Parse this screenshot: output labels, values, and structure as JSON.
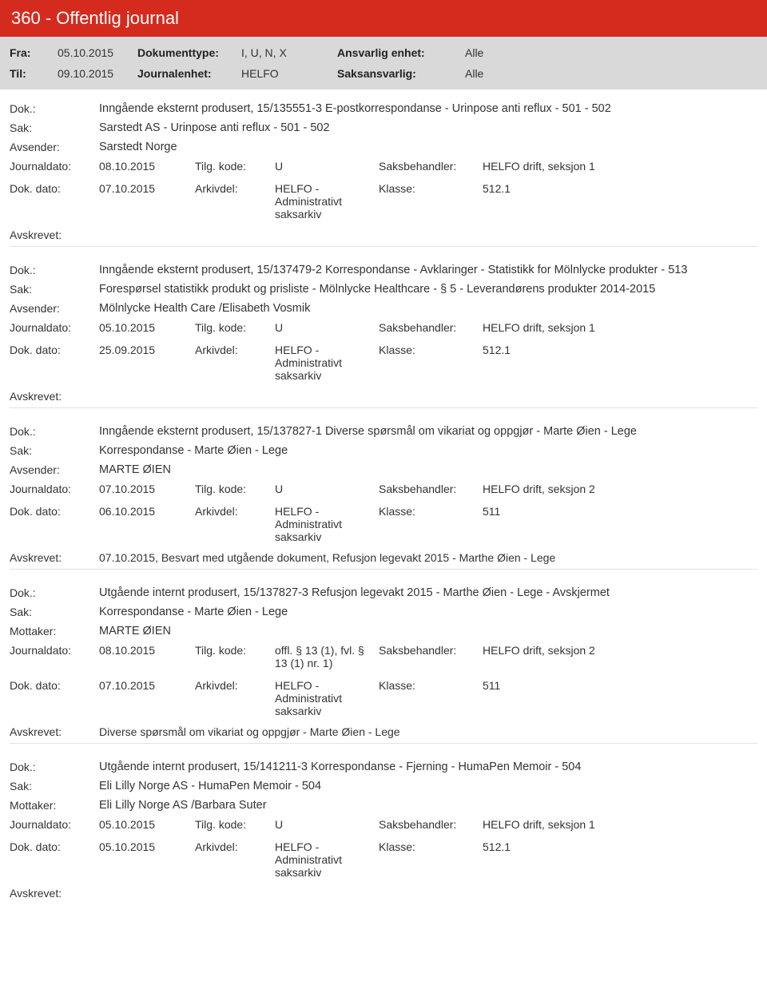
{
  "header": {
    "title": "360 - Offentlig journal",
    "fra_label": "Fra:",
    "fra_value": "05.10.2015",
    "til_label": "Til:",
    "til_value": "09.10.2015",
    "doktype_label": "Dokumenttype:",
    "doktype_value": "I, U, N, X",
    "journalenhet_label": "Journalenhet:",
    "journalenhet_value": "HELFO",
    "ansvarlig_label": "Ansvarlig enhet:",
    "ansvarlig_value": "Alle",
    "saksansvarlig_label": "Saksansvarlig:",
    "saksansvarlig_value": "Alle"
  },
  "labels": {
    "dok": "Dok.:",
    "sak": "Sak:",
    "avsender": "Avsender:",
    "mottaker": "Mottaker:",
    "journaldato": "Journaldato:",
    "dokdato": "Dok. dato:",
    "tilgkode": "Tilg. kode:",
    "arkivdel": "Arkivdel:",
    "saksbehandler": "Saksbehandler:",
    "klasse": "Klasse:",
    "avskrevet": "Avskrevet:"
  },
  "records": [
    {
      "dok": "Inngående eksternt produsert, 15/135551-3 E-postkorrespondanse - Urinpose anti reflux - 501 - 502",
      "sak": "Sarstedt AS - Urinpose anti reflux - 501 - 502",
      "party_label": "avsender",
      "party": "Sarstedt Norge",
      "journaldato": "08.10.2015",
      "tilgkode": "U",
      "saksbehandler": "HELFO drift, seksjon 1",
      "dokdato": "07.10.2015",
      "arkivdel": "HELFO - Administrativt saksarkiv",
      "klasse": "512.1",
      "avskrevet": ""
    },
    {
      "dok": "Inngående eksternt produsert, 15/137479-2 Korrespondanse - Avklaringer - Statistikk for Mölnlycke produkter - 513",
      "sak": "Forespørsel statistikk produkt og prisliste - Mölnlycke Healthcare - § 5 - Leverandørens produkter 2014-2015",
      "party_label": "avsender",
      "party": "Mölnlycke Health Care /Elisabeth Vosmik",
      "journaldato": "05.10.2015",
      "tilgkode": "U",
      "saksbehandler": "HELFO drift, seksjon 1",
      "dokdato": "25.09.2015",
      "arkivdel": "HELFO - Administrativt saksarkiv",
      "klasse": "512.1",
      "avskrevet": ""
    },
    {
      "dok": "Inngående eksternt produsert, 15/137827-1 Diverse spørsmål om vikariat og oppgjør - Marte Øien - Lege",
      "sak": "Korrespondanse - Marte Øien - Lege",
      "party_label": "avsender",
      "party": "MARTE ØIEN",
      "journaldato": "07.10.2015",
      "tilgkode": "U",
      "saksbehandler": "HELFO drift, seksjon 2",
      "dokdato": "06.10.2015",
      "arkivdel": "HELFO - Administrativt saksarkiv",
      "klasse": "511",
      "avskrevet": "07.10.2015, Besvart med utgående dokument, Refusjon legevakt 2015 -  Marthe Øien - Lege"
    },
    {
      "dok": "Utgående internt produsert, 15/137827-3 Refusjon legevakt 2015 -  Marthe Øien - Lege - Avskjermet",
      "sak": "Korrespondanse - Marte Øien - Lege",
      "party_label": "mottaker",
      "party": "MARTE ØIEN",
      "journaldato": "08.10.2015",
      "tilgkode": "offl. § 13 (1), fvl. § 13 (1) nr. 1)",
      "saksbehandler": "HELFO drift, seksjon 2",
      "dokdato": "07.10.2015",
      "arkivdel": "HELFO - Administrativt saksarkiv",
      "klasse": "511",
      "avskrevet": "Diverse spørsmål om vikariat og oppgjør - Marte Øien - Lege"
    },
    {
      "dok": "Utgående internt produsert, 15/141211-3 Korrespondanse - Fjerning - HumaPen Memoir - 504",
      "sak": "Eli Lilly Norge AS - HumaPen Memoir - 504",
      "party_label": "mottaker",
      "party": "Eli Lilly Norge AS /Barbara Suter",
      "journaldato": "05.10.2015",
      "tilgkode": "U",
      "saksbehandler": "HELFO drift, seksjon 1",
      "dokdato": "05.10.2015",
      "arkivdel": "HELFO - Administrativt saksarkiv",
      "klasse": "512.1",
      "avskrevet": ""
    }
  ]
}
